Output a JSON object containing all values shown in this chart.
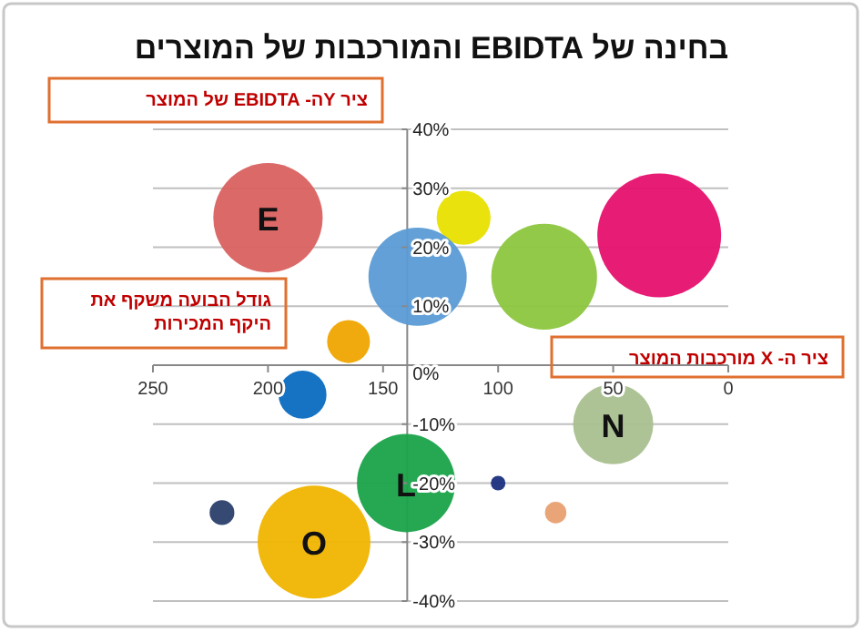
{
  "chart_data": {
    "type": "bubble",
    "title": "בחינה של EBIDTA והמורכבות של המוצרים",
    "annotations": [
      "ציר  Yה- EBIDTA של המוצר",
      "גודל הבועה משקף את היקף המכירות",
      "ציר ה- X מורכבות המוצר",
      {
        "text": "E",
        "x": 200,
        "y": 25
      },
      {
        "text": "N",
        "x": 50,
        "y": -10
      },
      {
        "text": "L",
        "x": 140,
        "y": -20
      },
      {
        "text": "O",
        "x": 180,
        "y": -30
      }
    ],
    "x": [
      200,
      115,
      135,
      80,
      30,
      165,
      185,
      50,
      140,
      100,
      75,
      220,
      180
    ],
    "values": [
      25,
      25,
      15,
      15,
      22,
      4,
      -5,
      -10,
      -20,
      -20,
      -25,
      -25,
      -30
    ],
    "sizes": [
      0.78,
      0.19,
      0.63,
      0.73,
      1,
      0.12,
      0.15,
      0.42,
      0.63,
      0.014,
      0.03,
      0.04,
      0.83
    ],
    "colors": [
      "#d9615f",
      "#e8e000",
      "#5b9bd5",
      "#8cc63f",
      "#e6106e",
      "#f0a500",
      "#0a6cc0",
      "#a9c08f",
      "#1aa34a",
      "#1a2f80",
      "#e8a070",
      "#2a3f6a",
      "#f0b400"
    ],
    "xlim": [
      250,
      0
    ],
    "xticks": [
      250,
      200,
      150,
      100,
      50,
      0
    ],
    "ylim": [
      -40,
      40
    ],
    "yticks": [
      {
        "value": -40,
        "label": "-40%"
      },
      {
        "value": -30,
        "label": "-30%"
      },
      {
        "value": -20,
        "label": "-20%"
      },
      {
        "value": -10,
        "label": "-10%"
      },
      {
        "value": 0,
        "label": "0%"
      },
      {
        "value": 10,
        "label": "10%"
      },
      {
        "value": 20,
        "label": "20%"
      },
      {
        "value": 30,
        "label": "30%"
      },
      {
        "value": 40,
        "label": "40%"
      }
    ],
    "grid": "y"
  }
}
